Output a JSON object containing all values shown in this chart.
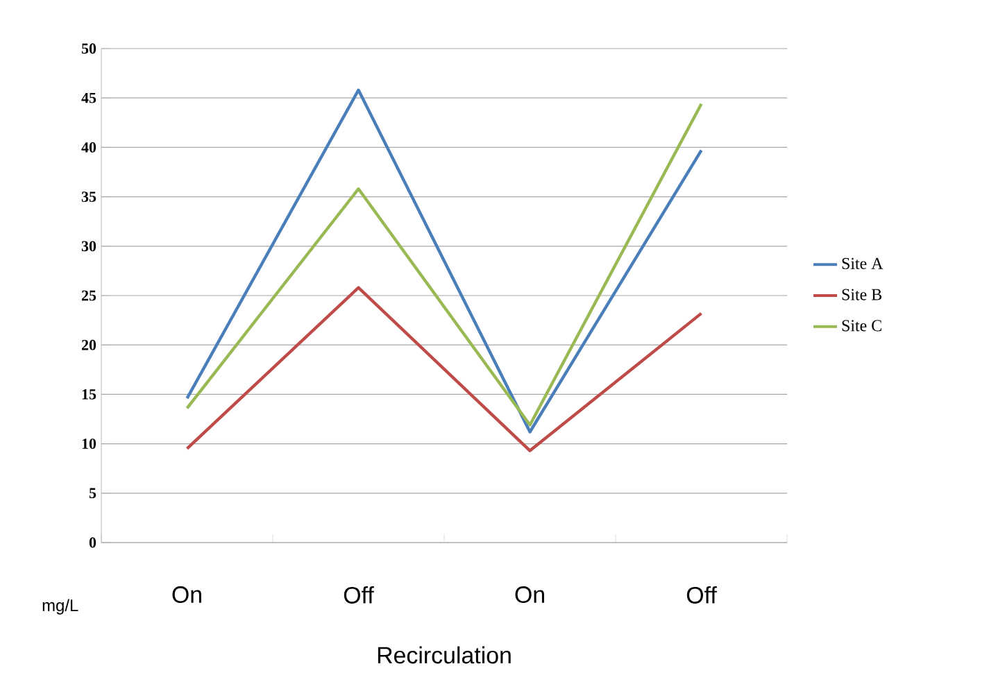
{
  "chart_data": {
    "type": "line",
    "xlabel": "Recirculation",
    "ylabel": "mg/L",
    "categories": [
      "On",
      "Off",
      "On",
      "Off"
    ],
    "series": [
      {
        "name": "Site A",
        "color": "#4a7ebb",
        "values": [
          14.6,
          45.8,
          11.2,
          39.7
        ]
      },
      {
        "name": "Site B",
        "color": "#be4b48",
        "values": [
          9.5,
          25.8,
          9.3,
          23.2
        ]
      },
      {
        "name": "Site C",
        "color": "#98b954",
        "values": [
          13.6,
          35.8,
          11.9,
          44.4
        ]
      }
    ],
    "ylim": [
      0,
      50
    ],
    "yticks": [
      0,
      5,
      10,
      15,
      20,
      25,
      30,
      35,
      40,
      45,
      50
    ],
    "grid": "y",
    "legend": "right",
    "marker": "none",
    "line_style": "solid"
  }
}
